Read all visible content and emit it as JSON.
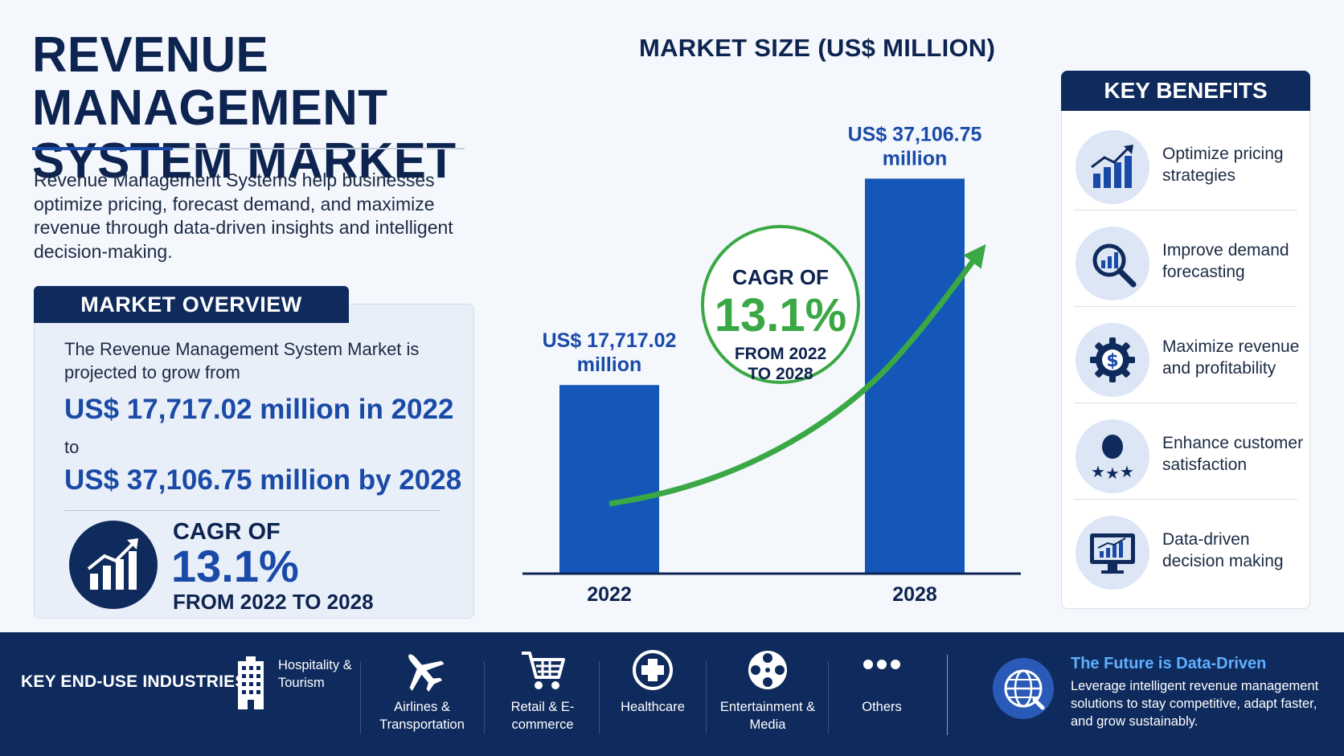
{
  "header": {
    "title_line1": "REVENUE MANAGEMENT",
    "title_line2": "SYSTEM MARKET",
    "intro": "Revenue Management Systems help businesses optimize pricing, forecast demand, and maximize revenue through data-driven insights and intelligent decision-making."
  },
  "overview": {
    "heading": "MARKET OVERVIEW",
    "text": "The Revenue Management System Market is projected to grow from",
    "value_2022": "US$ 17,717.02 million in 2022",
    "to": "to",
    "value_2028": "US$ 37,106.75 million by 2028",
    "cagr_label": "CAGR OF",
    "cagr_value": "13.1%",
    "cagr_period": "FROM 2022 TO 2028"
  },
  "chart_data": {
    "type": "bar",
    "title": "MARKET SIZE (US$ MILLION)",
    "categories": [
      "2022",
      "2028"
    ],
    "values": [
      17717.02,
      37106.75
    ],
    "data_labels": [
      [
        "US$ 17,717.02",
        "million"
      ],
      [
        "US$ 37,106.75",
        "million"
      ]
    ],
    "ylim": [
      0,
      40000
    ],
    "grid": false,
    "annotation": {
      "line1": "CAGR OF",
      "value": "13.1%",
      "line3": "FROM 2022",
      "line4": "TO 2028"
    },
    "colors": {
      "bar": "#1557b8",
      "arrow": "#3aa845",
      "axis": "#0d2350"
    }
  },
  "benefits": {
    "heading": "KEY BENEFITS",
    "items": [
      {
        "icon": "bar-chart-growth-icon",
        "label": "Optimize pricing strategies"
      },
      {
        "icon": "magnifier-chart-icon",
        "label": "Improve demand forecasting"
      },
      {
        "icon": "gear-dollar-icon",
        "label": "Maximize revenue and profitability"
      },
      {
        "icon": "customer-stars-icon",
        "label": "Enhance customer satisfaction"
      },
      {
        "icon": "monitor-chart-icon",
        "label": "Data-driven decision making"
      }
    ]
  },
  "footer": {
    "label": "KEY END-USE INDUSTRIES",
    "industries": [
      {
        "icon": "building-icon",
        "label": "Hospitality & Tourism"
      },
      {
        "icon": "airplane-icon",
        "label": "Airlines & Transportation"
      },
      {
        "icon": "shopping-cart-icon",
        "label": "Retail & E-commerce"
      },
      {
        "icon": "medical-cross-icon",
        "label": "Healthcare"
      },
      {
        "icon": "film-reel-icon",
        "label": "Entertainment & Media"
      },
      {
        "icon": "more-dots-icon",
        "label": "Others"
      }
    ],
    "future_title": "The Future is Data-Driven",
    "future_text": "Leverage intelligent revenue management solutions to stay competitive, adapt faster, and grow sustainably."
  },
  "colors": {
    "navy": "#0f2a5c",
    "blue": "#1a4aa8",
    "green": "#3aa845",
    "light_bg": "#f4f7fc"
  }
}
